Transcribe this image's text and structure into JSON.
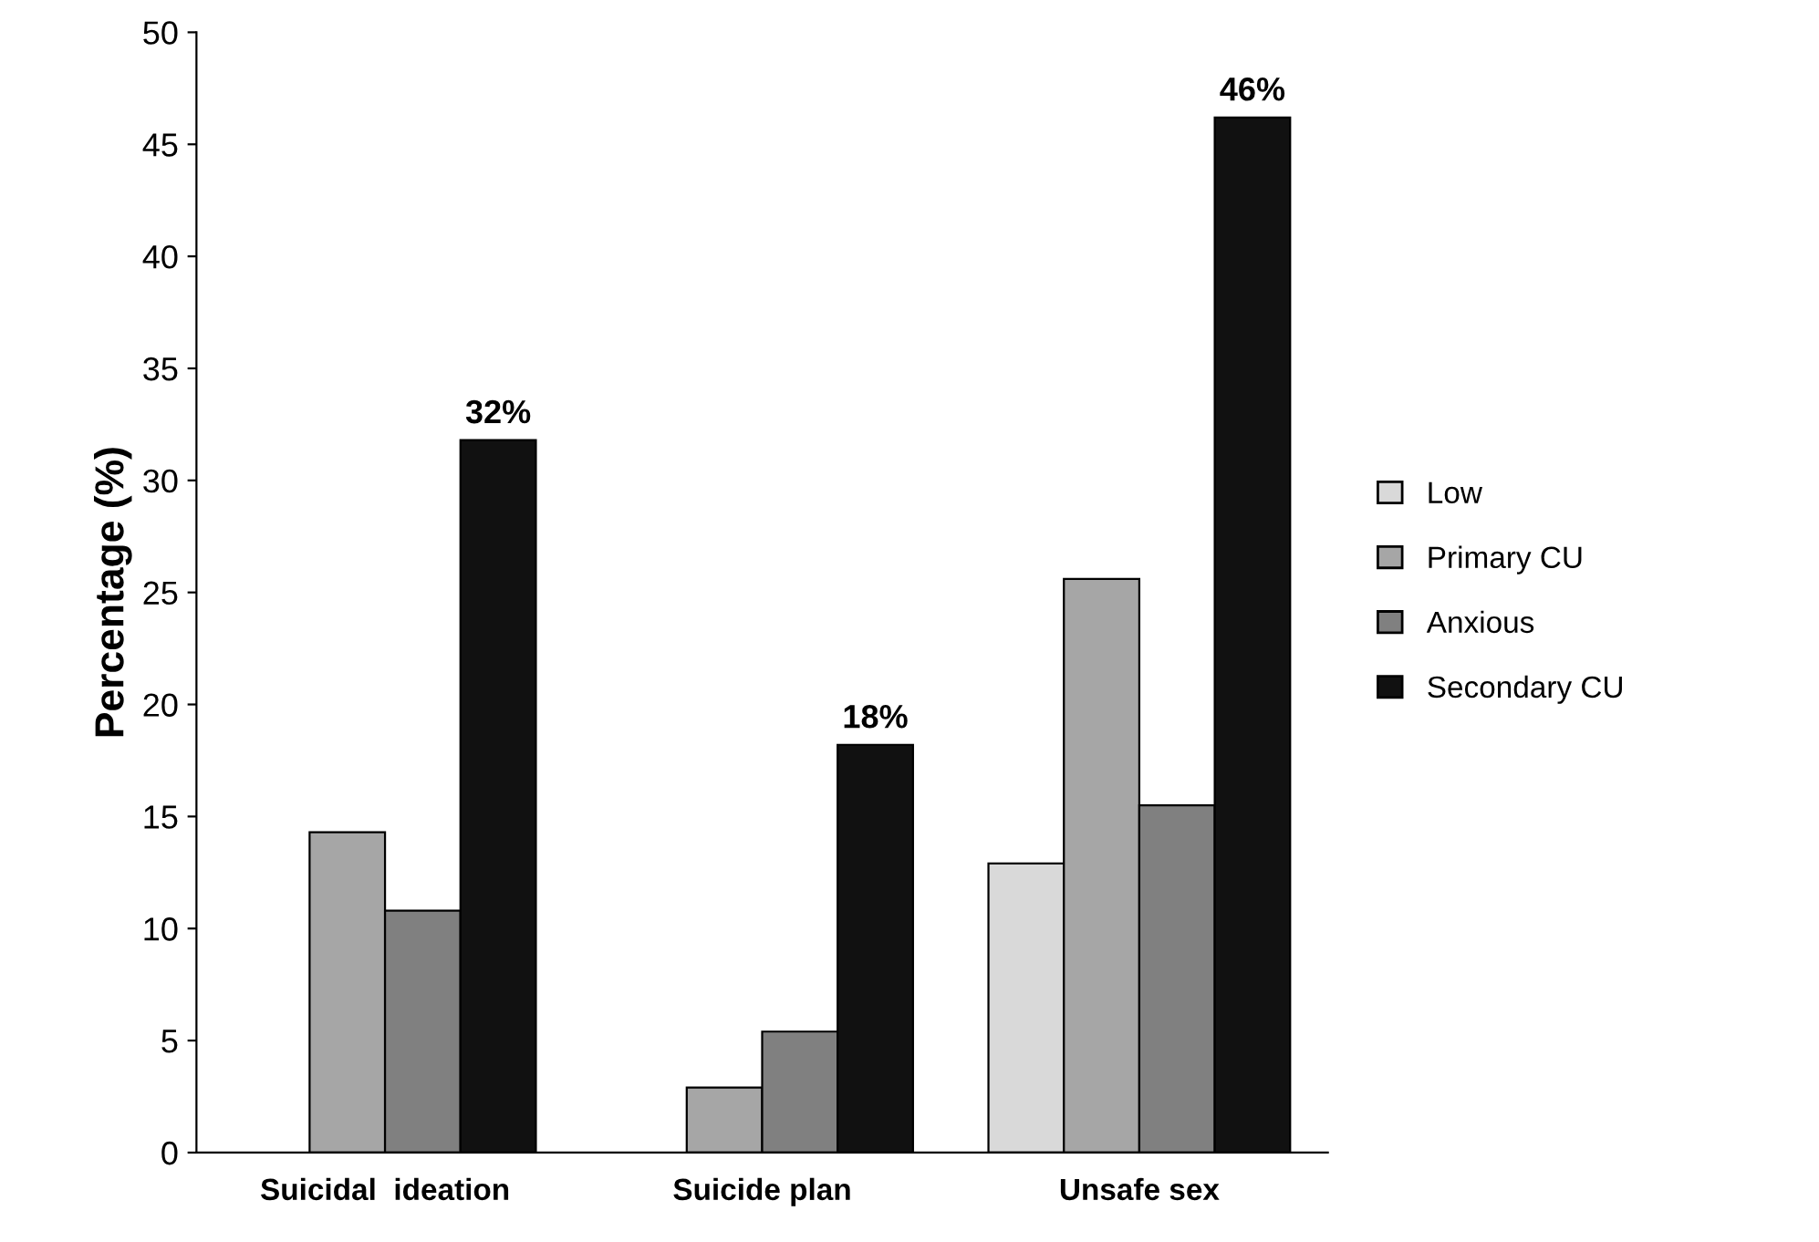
{
  "chart_data": {
    "type": "bar",
    "ylabel": "Percentage (%)",
    "categories": [
      "Suicidal  ideation",
      "Suicide plan",
      "Unsafe sex"
    ],
    "series": [
      {
        "name": "Low",
        "color": "#d9d9d9",
        "values": [
          null,
          null,
          12.9
        ]
      },
      {
        "name": "Primary CU",
        "color": "#a6a6a6",
        "values": [
          14.3,
          2.9,
          25.6
        ]
      },
      {
        "name": "Anxious",
        "color": "#808080",
        "values": [
          10.8,
          5.4,
          15.5
        ]
      },
      {
        "name": "Secondary CU",
        "color": "#111111",
        "values": [
          31.8,
          18.2,
          46.2
        ],
        "value_labels": [
          "32%",
          "18%",
          "46%"
        ]
      }
    ],
    "ylim": [
      0,
      50
    ],
    "yticks": [
      0,
      5,
      10,
      15,
      20,
      25,
      30,
      35,
      40,
      45,
      50
    ],
    "grid": false,
    "legend": "right"
  }
}
